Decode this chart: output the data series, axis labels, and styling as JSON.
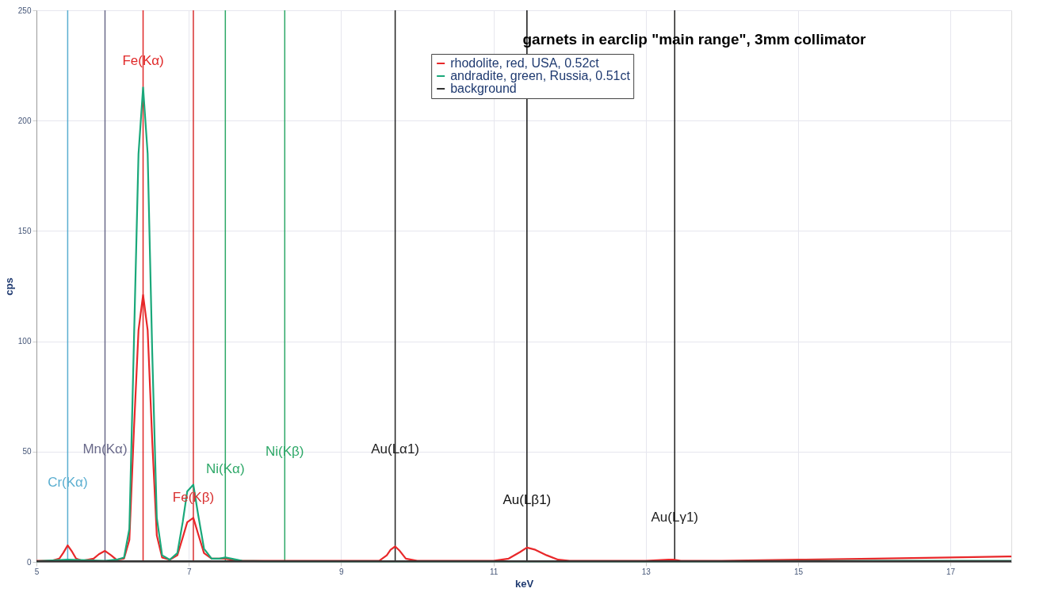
{
  "chart_data": {
    "type": "line",
    "title": "garnets in earclip \"main range\", 3mm collimator",
    "xlabel": "keV",
    "ylabel": "cps",
    "xlim": [
      5,
      17.8
    ],
    "xticks": [
      5,
      7,
      9,
      11,
      13,
      15,
      17
    ],
    "ylim": [
      0,
      250
    ],
    "yticks": [
      0,
      50,
      100,
      150,
      200,
      250
    ],
    "grid": true,
    "legend": "top",
    "marker": "none",
    "line_style": "solid",
    "series": [
      {
        "name": "rhodolite, red, USA, 0.52ct",
        "color": "#e8282a",
        "x": [
          5.0,
          5.2,
          5.3,
          5.35,
          5.41,
          5.47,
          5.52,
          5.6,
          5.75,
          5.82,
          5.9,
          5.98,
          6.05,
          6.15,
          6.22,
          6.28,
          6.34,
          6.4,
          6.46,
          6.52,
          6.58,
          6.65,
          6.75,
          6.85,
          6.92,
          6.98,
          7.06,
          7.12,
          7.2,
          7.3,
          7.4,
          7.48,
          7.56,
          7.7,
          8.0,
          8.5,
          9.0,
          9.5,
          9.6,
          9.65,
          9.71,
          9.77,
          9.85,
          10.0,
          10.5,
          11.0,
          11.2,
          11.35,
          11.44,
          11.55,
          11.7,
          11.85,
          12.0,
          12.5,
          13.0,
          13.3,
          13.38,
          13.46,
          14,
          15,
          16,
          17,
          17.8
        ],
        "values": [
          0.5,
          0.5,
          1.5,
          4,
          7.5,
          4.5,
          1.5,
          0.5,
          1.5,
          3.5,
          5,
          3,
          1,
          1.5,
          10,
          60,
          105,
          121,
          105,
          55,
          12,
          2,
          1,
          3,
          11,
          18,
          20,
          13,
          4,
          1.5,
          1.5,
          1.5,
          1,
          0.5,
          0.5,
          0.5,
          0.5,
          0.5,
          3,
          5.5,
          7,
          5,
          1.5,
          0.5,
          0.5,
          0.5,
          1.5,
          4.5,
          6.5,
          5.5,
          3,
          1,
          0.5,
          0.5,
          0.5,
          1,
          1,
          0.5,
          0.5,
          1,
          1.5,
          2,
          2.5
        ]
      },
      {
        "name": "andradite, green, Russia, 0.51ct",
        "color": "#1aa87a",
        "x": [
          5.0,
          5.41,
          5.9,
          6.05,
          6.15,
          6.22,
          6.28,
          6.34,
          6.4,
          6.46,
          6.52,
          6.58,
          6.65,
          6.75,
          6.85,
          6.92,
          6.98,
          7.06,
          7.12,
          7.2,
          7.3,
          7.4,
          7.48,
          7.56,
          7.7,
          8,
          10,
          12,
          14,
          16,
          17.8
        ],
        "values": [
          0.3,
          1,
          0.5,
          1,
          2,
          15,
          100,
          185,
          215,
          185,
          95,
          20,
          3,
          1,
          4,
          18,
          32,
          35,
          22,
          6,
          1.5,
          1.5,
          2,
          1.5,
          0.5,
          0.3,
          0.3,
          0.3,
          0.3,
          0.5,
          0.5
        ]
      },
      {
        "name": "background",
        "color": "#333333",
        "x": [
          5,
          8,
          12,
          17.8
        ],
        "values": [
          0.3,
          0.3,
          0.3,
          0.3
        ]
      }
    ],
    "ref_lines": [
      {
        "axis": "x",
        "value": 5.41,
        "color": "#5aaed0"
      },
      {
        "axis": "x",
        "value": 5.9,
        "color": "#6a6a8a"
      },
      {
        "axis": "x",
        "value": 6.4,
        "color": "#e02828"
      },
      {
        "axis": "x",
        "value": 7.06,
        "color": "#d83030"
      },
      {
        "axis": "x",
        "value": 7.48,
        "color": "#2ea868"
      },
      {
        "axis": "x",
        "value": 8.26,
        "color": "#2ea868"
      },
      {
        "axis": "x",
        "value": 9.71,
        "color": "#222222"
      },
      {
        "axis": "x",
        "value": 11.44,
        "color": "#111111"
      },
      {
        "axis": "x",
        "value": 13.38,
        "color": "#222222"
      }
    ],
    "annotations": [
      {
        "text": "Cr(Kα)",
        "x": 5.41,
        "y": 36
      },
      {
        "text": "Mn(Kα)",
        "x": 5.9,
        "y": 51
      },
      {
        "text": "Fe(Kα)",
        "x": 6.4,
        "y": 227
      },
      {
        "text": "Fe(Kβ)",
        "x": 7.06,
        "y": 29
      },
      {
        "text": "Ni(Kα)",
        "x": 7.48,
        "y": 42
      },
      {
        "text": "Ni(Kβ)",
        "x": 8.26,
        "y": 50
      },
      {
        "text": "Au(Lα1)",
        "x": 9.71,
        "y": 51
      },
      {
        "text": "Au(Lβ1)",
        "x": 11.44,
        "y": 28
      },
      {
        "text": "Au(Lγ1)",
        "x": 13.38,
        "y": 20
      }
    ]
  }
}
